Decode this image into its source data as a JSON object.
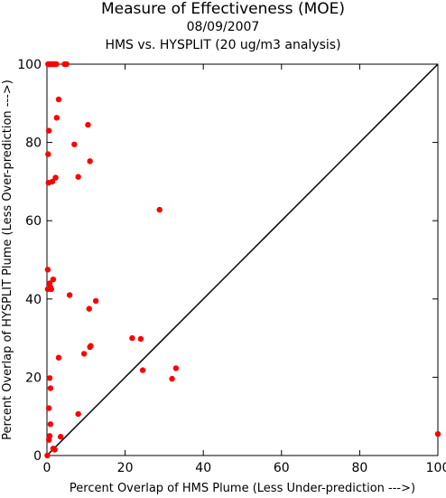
{
  "chart_data": {
    "type": "scatter",
    "title": "Measure of Effectiveness (MOE)",
    "subtitle": "08/09/2007",
    "subtitle2": "HMS vs. HYSPLIT  (20 ug/m3 analysis)",
    "xlabel": "Percent Overlap of HMS Plume (Less Under-prediction --->)",
    "ylabel": "Percent Overlap of HYSPLIT Plume (Less Over-prediction --->)",
    "xlim": [
      0,
      100
    ],
    "ylim": [
      0,
      100
    ],
    "xticks": [
      0,
      20,
      40,
      60,
      80,
      100
    ],
    "yticks": [
      0,
      20,
      40,
      60,
      80,
      100
    ],
    "point_color": "#ff0000",
    "reference_line": [
      [
        0,
        0
      ],
      [
        100,
        100
      ]
    ],
    "points": [
      {
        "x": 0.3,
        "y": 100
      },
      {
        "x": 0.6,
        "y": 100
      },
      {
        "x": 0.9,
        "y": 100
      },
      {
        "x": 1.2,
        "y": 100
      },
      {
        "x": 1.5,
        "y": 100
      },
      {
        "x": 1.8,
        "y": 100
      },
      {
        "x": 2.1,
        "y": 100
      },
      {
        "x": 2.4,
        "y": 100
      },
      {
        "x": 4.5,
        "y": 100
      },
      {
        "x": 5.0,
        "y": 100
      },
      {
        "x": 3.0,
        "y": 91
      },
      {
        "x": 10.5,
        "y": 84.5
      },
      {
        "x": 2.5,
        "y": 86.3
      },
      {
        "x": 0.5,
        "y": 83
      },
      {
        "x": 7.0,
        "y": 79.5
      },
      {
        "x": 0.3,
        "y": 77
      },
      {
        "x": 11.0,
        "y": 75.2
      },
      {
        "x": 8.0,
        "y": 71.2
      },
      {
        "x": 2.2,
        "y": 71
      },
      {
        "x": 1.4,
        "y": 70
      },
      {
        "x": 0.4,
        "y": 69.7
      },
      {
        "x": 28.8,
        "y": 62.8
      },
      {
        "x": 0.2,
        "y": 47.5
      },
      {
        "x": 1.6,
        "y": 45
      },
      {
        "x": 0.7,
        "y": 44
      },
      {
        "x": 0.9,
        "y": 43
      },
      {
        "x": 0.2,
        "y": 42.5
      },
      {
        "x": 1.1,
        "y": 42.5
      },
      {
        "x": 5.8,
        "y": 41
      },
      {
        "x": 12.5,
        "y": 39.5
      },
      {
        "x": 10.8,
        "y": 37.5
      },
      {
        "x": 21.8,
        "y": 30
      },
      {
        "x": 24.0,
        "y": 29.8
      },
      {
        "x": 11.2,
        "y": 28
      },
      {
        "x": 11.0,
        "y": 27.7
      },
      {
        "x": 9.5,
        "y": 26
      },
      {
        "x": 3.0,
        "y": 25
      },
      {
        "x": 33.0,
        "y": 22.3
      },
      {
        "x": 24.5,
        "y": 21.8
      },
      {
        "x": 32.0,
        "y": 19.6
      },
      {
        "x": 0.7,
        "y": 19.8
      },
      {
        "x": 0.9,
        "y": 17.2
      },
      {
        "x": 0.5,
        "y": 12.1
      },
      {
        "x": 8.0,
        "y": 10.6
      },
      {
        "x": 0.9,
        "y": 8
      },
      {
        "x": 100,
        "y": 5.5
      },
      {
        "x": 0.7,
        "y": 5
      },
      {
        "x": 3.5,
        "y": 4.8
      },
      {
        "x": 0.5,
        "y": 4
      },
      {
        "x": 1.6,
        "y": 1.8
      },
      {
        "x": 2.0,
        "y": 1.5
      },
      {
        "x": 0.1,
        "y": 0
      }
    ]
  }
}
